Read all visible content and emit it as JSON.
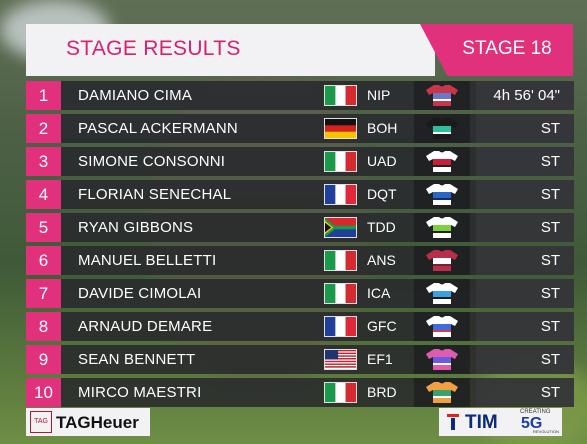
{
  "header": {
    "title": "STAGE RESULTS",
    "stage": "STAGE 18"
  },
  "results": [
    {
      "pos": "1",
      "name": "DAMIANO CIMA",
      "flag": "italy",
      "team": "NIP",
      "time": "4h 56' 04\"",
      "jersey": [
        "#c8364b",
        "#6a78c8",
        "#ffffff"
      ]
    },
    {
      "pos": "2",
      "name": "PASCAL ACKERMANN",
      "flag": "germany",
      "team": "BOH",
      "time": "ST",
      "jersey": [
        "#1a1a1a",
        "#2dbf9c",
        "#ffffff"
      ]
    },
    {
      "pos": "3",
      "name": "SIMONE CONSONNI",
      "flag": "italy",
      "team": "UAD",
      "time": "ST",
      "jersey": [
        "#ffffff",
        "#c8203a",
        "#222222"
      ]
    },
    {
      "pos": "4",
      "name": "FLORIAN SENECHAL",
      "flag": "france",
      "team": "DQT",
      "time": "ST",
      "jersey": [
        "#ffffff",
        "#2a66c8",
        "#0e2d6b"
      ]
    },
    {
      "pos": "5",
      "name": "RYAN GIBBONS",
      "flag": "southafrica",
      "team": "TDD",
      "time": "ST",
      "jersey": [
        "#ffffff",
        "#7dd03a",
        "#222222"
      ]
    },
    {
      "pos": "6",
      "name": "MANUEL BELLETTI",
      "flag": "italy",
      "team": "ANS",
      "time": "ST",
      "jersey": [
        "#b92e4a",
        "#ffffff",
        "#7a1f33"
      ]
    },
    {
      "pos": "7",
      "name": "DAVIDE CIMOLAI",
      "flag": "italy",
      "team": "ICA",
      "time": "ST",
      "jersey": [
        "#ffffff",
        "#3aa0e0",
        "#1a1a1a"
      ]
    },
    {
      "pos": "8",
      "name": "ARNAUD DEMARE",
      "flag": "france",
      "team": "GFC",
      "time": "ST",
      "jersey": [
        "#ffffff",
        "#3a6ee0",
        "#e03a3a"
      ]
    },
    {
      "pos": "9",
      "name": "SEAN BENNETT",
      "flag": "usa",
      "team": "EF1",
      "time": "ST",
      "jersey": [
        "#e05ab0",
        "#6a5ae0",
        "#ffffff"
      ]
    },
    {
      "pos": "10",
      "name": "MIRCO MAESTRI",
      "flag": "italy",
      "team": "BRD",
      "time": "ST",
      "jersey": [
        "#f0a040",
        "#3aa070",
        "#ffffff"
      ]
    }
  ],
  "footer": {
    "left_logo_small": "TAG",
    "left_logo": "TAGHeuer",
    "right_logo": "TIM",
    "right_tag_top": "CREATING",
    "right_tag": "5G",
    "right_tag_sub": "REVOLUTION"
  }
}
